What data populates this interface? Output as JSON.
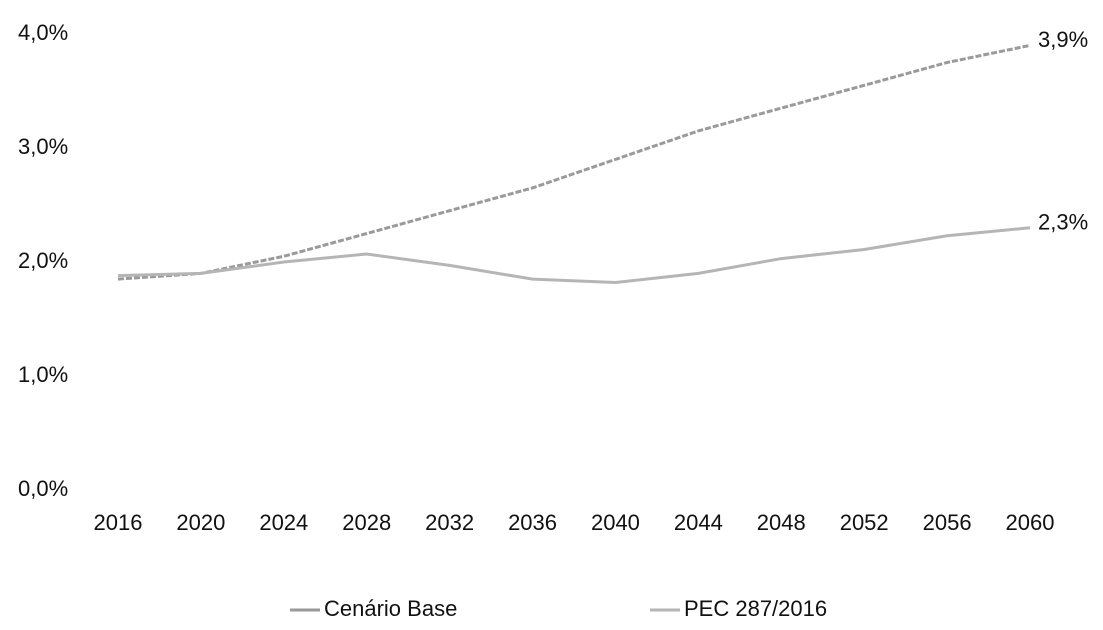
{
  "chart_data": {
    "type": "line",
    "categories": [
      "2016",
      "2020",
      "2024",
      "2028",
      "2032",
      "2036",
      "2040",
      "2044",
      "2048",
      "2052",
      "2056",
      "2060"
    ],
    "series": [
      {
        "name": "Cenário Base",
        "color": "#9a9a9a",
        "values": [
          1.85,
          1.9,
          2.05,
          2.25,
          2.45,
          2.65,
          2.9,
          3.15,
          3.35,
          3.55,
          3.75,
          3.9
        ],
        "value_labels": [
          null,
          null,
          null,
          null,
          null,
          null,
          null,
          null,
          null,
          null,
          null,
          "3,9%"
        ]
      },
      {
        "name": "PEC 287/2016",
        "color": "#b5b5b5",
        "values": [
          1.88,
          1.9,
          2.0,
          2.07,
          1.97,
          1.85,
          1.82,
          1.9,
          2.03,
          2.11,
          2.23,
          2.3
        ],
        "value_labels": [
          null,
          null,
          null,
          null,
          null,
          null,
          null,
          null,
          null,
          null,
          null,
          "2,3%"
        ]
      }
    ],
    "ylim": [
      0,
      4
    ],
    "yticks": [
      {
        "value": 0,
        "label": "0,0%"
      },
      {
        "value": 1,
        "label": "1,0%"
      },
      {
        "value": 2,
        "label": "2,0%"
      },
      {
        "value": 3,
        "label": "3,0%"
      },
      {
        "value": 4,
        "label": "4,0%"
      }
    ],
    "grid": false,
    "legend": "bottom"
  }
}
